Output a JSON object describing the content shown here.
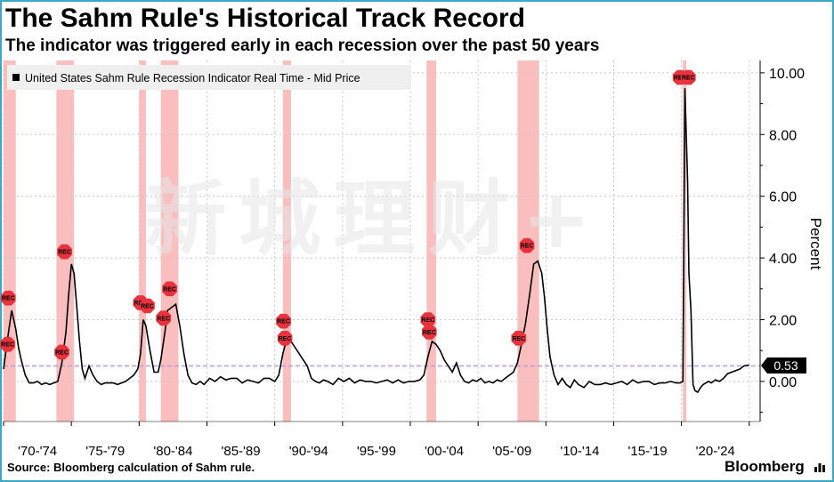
{
  "header": {
    "title": "The Sahm Rule's Historical Track Record",
    "subtitle": "The indicator was triggered early in each recession over the past 50 years"
  },
  "footer": {
    "source": "Source: Bloomberg calculation of Sahm rule.",
    "brand": "Bloomberg"
  },
  "colors": {
    "recession_band": "#f9b3b3",
    "line": "#000000",
    "reference_line": "#b39ddb",
    "marker": "#e8323c",
    "frame": "#3aa9c6"
  },
  "chart_data": {
    "type": "line",
    "ylabel": "Percent",
    "ylim": [
      -1.3,
      10.4
    ],
    "xlim": [
      1970.0,
      2025.8
    ],
    "y_axis_side": "right",
    "y_ticks": [
      "10.00",
      "8.00",
      "6.00",
      "4.00",
      "2.00",
      "0.00"
    ],
    "x_tick_labels": [
      "'70-'74",
      "'75-'79",
      "'80-'84",
      "'85-'89",
      "'90-'94",
      "'95-'99",
      "'00-'04",
      "'05-'09",
      "'10-'14",
      "'15-'19",
      "'20-'24"
    ],
    "grid": true,
    "legend": "top-left",
    "series": [
      {
        "name": "United States Sahm Rule Recession Indicator Real Time - Mid Price",
        "x": [
          1970.0,
          1970.3,
          1970.6,
          1970.9,
          1971.1,
          1971.3,
          1971.6,
          1971.9,
          1972.2,
          1972.5,
          1972.8,
          1973.1,
          1973.4,
          1973.7,
          1974.0,
          1974.3,
          1974.6,
          1974.8,
          1975.0,
          1975.2,
          1975.4,
          1975.6,
          1975.8,
          1976.0,
          1976.3,
          1976.6,
          1976.9,
          1977.2,
          1977.5,
          1977.8,
          1978.1,
          1978.4,
          1978.7,
          1979.0,
          1979.3,
          1979.6,
          1979.9,
          1980.1,
          1980.3,
          1980.5,
          1980.8,
          1981.1,
          1981.4,
          1981.6,
          1981.9,
          1982.1,
          1982.4,
          1982.7,
          1983.0,
          1983.3,
          1983.6,
          1983.9,
          1984.2,
          1984.5,
          1984.8,
          1985.2,
          1985.6,
          1986.0,
          1986.4,
          1986.8,
          1987.2,
          1987.6,
          1988.0,
          1988.4,
          1988.8,
          1989.2,
          1989.6,
          1990.0,
          1990.3,
          1990.6,
          1990.9,
          1991.2,
          1991.5,
          1991.8,
          1992.1,
          1992.4,
          1992.7,
          1993.0,
          1993.3,
          1993.6,
          1993.9,
          1994.3,
          1994.7,
          1995.1,
          1995.5,
          1995.9,
          1996.3,
          1996.7,
          1997.1,
          1997.5,
          1997.9,
          1998.3,
          1998.7,
          1999.1,
          1999.5,
          1999.9,
          2000.3,
          2000.7,
          2001.0,
          2001.3,
          2001.6,
          2001.9,
          2002.2,
          2002.5,
          2002.8,
          2003.1,
          2003.4,
          2003.7,
          2004.0,
          2004.3,
          2004.6,
          2004.9,
          2005.2,
          2005.5,
          2005.8,
          2006.1,
          2006.4,
          2006.7,
          2007.0,
          2007.3,
          2007.6,
          2007.9,
          2008.2,
          2008.5,
          2008.8,
          2009.1,
          2009.4,
          2009.7,
          2009.9,
          2010.1,
          2010.3,
          2010.6,
          2010.9,
          2011.2,
          2011.5,
          2011.8,
          2012.1,
          2012.4,
          2012.8,
          2013.2,
          2013.6,
          2014.0,
          2014.4,
          2014.8,
          2015.2,
          2015.6,
          2016.0,
          2016.4,
          2016.8,
          2017.2,
          2017.6,
          2018.0,
          2018.4,
          2018.8,
          2019.2,
          2019.6,
          2019.9,
          2020.1,
          2020.25,
          2020.35,
          2020.45,
          2020.55,
          2020.7,
          2020.85,
          2021.0,
          2021.2,
          2021.4,
          2021.6,
          2021.8,
          2022.0,
          2022.2,
          2022.5,
          2022.8,
          2023.1,
          2023.4,
          2023.7,
          2024.0,
          2024.3,
          2024.6,
          2025.0
        ],
        "values": [
          0.4,
          1.4,
          2.3,
          1.7,
          1.1,
          0.7,
          0.2,
          -0.05,
          -0.05,
          0.0,
          -0.1,
          -0.05,
          -0.1,
          -0.05,
          0.0,
          0.6,
          1.6,
          2.8,
          3.8,
          3.5,
          2.4,
          1.3,
          0.4,
          0.1,
          0.5,
          0.2,
          0.0,
          -0.1,
          -0.05,
          -0.05,
          -0.05,
          -0.1,
          -0.05,
          0.0,
          0.1,
          0.2,
          0.4,
          0.9,
          2.0,
          1.8,
          1.0,
          0.3,
          0.3,
          0.7,
          1.6,
          2.3,
          2.4,
          2.5,
          1.8,
          0.9,
          0.2,
          -0.05,
          -0.1,
          0.0,
          -0.1,
          0.1,
          0.0,
          0.15,
          0.05,
          0.1,
          0.1,
          -0.05,
          0.05,
          0.0,
          -0.05,
          0.1,
          0.1,
          0.0,
          0.2,
          0.9,
          1.4,
          1.3,
          1.1,
          0.9,
          0.7,
          0.5,
          0.1,
          0.0,
          -0.05,
          0.05,
          0.0,
          -0.1,
          0.1,
          0.0,
          0.1,
          -0.05,
          0.05,
          0.0,
          0.0,
          -0.05,
          0.0,
          0.05,
          -0.05,
          0.05,
          -0.05,
          0.0,
          0.0,
          0.05,
          0.2,
          0.8,
          1.3,
          1.2,
          1.0,
          0.7,
          0.5,
          0.3,
          0.6,
          0.2,
          0.0,
          -0.05,
          0.05,
          0.0,
          0.1,
          -0.05,
          0.0,
          -0.05,
          0.05,
          0.0,
          0.1,
          0.2,
          0.3,
          0.6,
          1.2,
          1.9,
          2.8,
          3.8,
          3.9,
          3.5,
          2.7,
          1.7,
          0.8,
          0.2,
          -0.1,
          0.1,
          -0.1,
          -0.2,
          0.05,
          -0.1,
          -0.2,
          0.0,
          -0.1,
          -0.1,
          -0.05,
          -0.1,
          -0.05,
          0.0,
          -0.1,
          0.05,
          -0.05,
          0.0,
          0.0,
          -0.1,
          -0.05,
          -0.05,
          0.0,
          -0.05,
          -0.05,
          0.0,
          9.5,
          8.0,
          6.5,
          3.5,
          2.3,
          -0.1,
          -0.3,
          -0.35,
          -0.2,
          -0.1,
          -0.05,
          0.0,
          -0.05,
          0.05,
          0.0,
          0.1,
          0.25,
          0.3,
          0.35,
          0.4,
          0.5,
          0.53
        ]
      }
    ],
    "recessions": [
      [
        1970.0,
        1970.9
      ],
      [
        1973.9,
        1975.2
      ],
      [
        1980.0,
        1980.5
      ],
      [
        1981.6,
        1982.9
      ],
      [
        1990.6,
        1991.2
      ],
      [
        2001.2,
        2001.9
      ],
      [
        2007.9,
        2009.5
      ],
      [
        2020.1,
        2020.35
      ]
    ],
    "reference_line": 0.5,
    "last_value_label": "0.53",
    "rec_markers": [
      {
        "x": 1970.3,
        "y": 1.2,
        "label": "REC"
      },
      {
        "x": 1970.35,
        "y": 2.7,
        "label": "REC"
      },
      {
        "x": 1974.3,
        "y": 0.95,
        "label": "REC"
      },
      {
        "x": 1974.5,
        "y": 4.2,
        "label": "REC"
      },
      {
        "x": 1980.1,
        "y": 2.55,
        "label": "REC"
      },
      {
        "x": 1980.6,
        "y": 2.45,
        "label": "REC"
      },
      {
        "x": 1981.8,
        "y": 2.05,
        "label": "REC"
      },
      {
        "x": 1982.25,
        "y": 3.0,
        "label": "REC"
      },
      {
        "x": 1990.65,
        "y": 1.95,
        "label": "REC"
      },
      {
        "x": 1990.75,
        "y": 1.4,
        "label": "REC"
      },
      {
        "x": 2001.3,
        "y": 2.0,
        "label": "REC"
      },
      {
        "x": 2001.4,
        "y": 1.6,
        "label": "REC"
      },
      {
        "x": 2008.0,
        "y": 1.4,
        "label": "REC"
      },
      {
        "x": 2008.6,
        "y": 4.4,
        "label": "REC"
      },
      {
        "x": 2019.9,
        "y": 9.85,
        "label": "REC"
      },
      {
        "x": 2020.5,
        "y": 9.85,
        "label": "REC"
      }
    ]
  }
}
